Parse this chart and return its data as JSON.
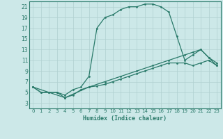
{
  "xlabel": "Humidex (Indice chaleur)",
  "background_color": "#cce8e8",
  "grid_color": "#b0d0d0",
  "line_color": "#2a7a6a",
  "spine_color": "#2a7a6a",
  "xlim": [
    -0.5,
    23.5
  ],
  "ylim": [
    2,
    22
  ],
  "xticks": [
    0,
    1,
    2,
    3,
    4,
    5,
    6,
    7,
    8,
    9,
    10,
    11,
    12,
    13,
    14,
    15,
    16,
    17,
    18,
    19,
    20,
    21,
    22,
    23
  ],
  "yticks": [
    3,
    5,
    7,
    9,
    11,
    13,
    15,
    17,
    19,
    21
  ],
  "line1_x": [
    0,
    1,
    2,
    3,
    4,
    5,
    6,
    7,
    8,
    9,
    10,
    11,
    12,
    13,
    14,
    15,
    16,
    17,
    18,
    19,
    20,
    21,
    22,
    23
  ],
  "line1_y": [
    6,
    5,
    5,
    5,
    4.5,
    5.5,
    6,
    8,
    17,
    19,
    19.5,
    20.5,
    21,
    21,
    21.5,
    21.5,
    21,
    20,
    15.5,
    11,
    12,
    13,
    11.5,
    10.5
  ],
  "line2_x": [
    0,
    1,
    2,
    3,
    4,
    5,
    6,
    7,
    8,
    9,
    10,
    11,
    12,
    13,
    14,
    15,
    16,
    17,
    18,
    19,
    20,
    21,
    22,
    23
  ],
  "line2_y": [
    6,
    5,
    5,
    5,
    4,
    4.5,
    5.5,
    6,
    6.2,
    6.5,
    7,
    7.5,
    8,
    8.5,
    9,
    9.5,
    10,
    10.5,
    10.5,
    10.5,
    10,
    10.5,
    11,
    10
  ],
  "line3_x": [
    0,
    4,
    7,
    9,
    11,
    13,
    15,
    17,
    19,
    20,
    21,
    22,
    23
  ],
  "line3_y": [
    6,
    4,
    6,
    7,
    8,
    9,
    10,
    11,
    12,
    12.5,
    13,
    11.5,
    10
  ]
}
